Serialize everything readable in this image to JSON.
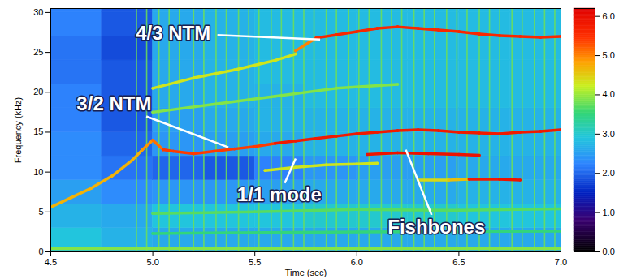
{
  "chart_data": {
    "type": "spectrogram",
    "xlabel": "Time (sec)",
    "ylabel": "Frequency (kHz)",
    "xlim": [
      4.5,
      7.0
    ],
    "xticks": [
      4.5,
      {
        "value": 5,
        "label": "5.0"
      },
      5.5,
      {
        "value": 6,
        "label": "6.0"
      },
      6.5,
      {
        "value": 7,
        "label": "7.0"
      }
    ],
    "ylim": [
      0,
      30.5
    ],
    "yticks": [
      0,
      5,
      10,
      15,
      20,
      25,
      30
    ],
    "heatmap": {
      "x_edges": [
        4.5,
        4.75,
        5.0,
        5.25,
        5.5,
        5.75,
        6.0,
        6.25,
        6.5,
        6.75,
        7.0
      ],
      "y_edges": [
        0,
        3,
        6,
        9,
        12,
        15,
        18,
        21,
        24,
        27,
        30,
        30.5
      ],
      "values": [
        [
          2.9,
          2.7,
          2.6,
          2.6,
          2.6,
          2.6,
          2.6,
          2.6,
          2.6,
          2.6
        ],
        [
          2.7,
          2.6,
          2.9,
          2.9,
          2.9,
          3.0,
          3.0,
          3.0,
          2.9,
          2.9
        ],
        [
          2.5,
          2.3,
          2.4,
          2.4,
          2.5,
          2.6,
          2.6,
          2.6,
          2.7,
          2.7
        ],
        [
          2.3,
          2.1,
          2.0,
          1.9,
          2.2,
          2.4,
          2.5,
          2.5,
          2.6,
          2.6
        ],
        [
          2.3,
          2.0,
          2.4,
          2.5,
          2.6,
          2.7,
          2.7,
          2.7,
          2.7,
          2.7
        ],
        [
          2.2,
          1.9,
          2.5,
          2.6,
          2.7,
          2.7,
          2.7,
          2.7,
          2.7,
          2.7
        ],
        [
          2.2,
          1.9,
          2.6,
          2.7,
          2.7,
          2.8,
          2.8,
          2.8,
          2.8,
          2.8
        ],
        [
          2.1,
          1.9,
          2.6,
          2.7,
          2.8,
          2.8,
          2.8,
          2.8,
          2.8,
          2.8
        ],
        [
          2.1,
          1.8,
          2.6,
          2.7,
          2.8,
          2.8,
          2.8,
          2.8,
          2.8,
          2.8
        ],
        [
          2.2,
          1.9,
          2.6,
          2.7,
          2.8,
          2.8,
          2.8,
          2.8,
          2.8,
          2.8
        ],
        [
          2.2,
          1.9,
          2.6,
          2.7,
          2.8,
          2.8,
          2.8,
          2.8,
          2.8,
          2.8
        ]
      ]
    },
    "spikes": {
      "x": [
        4.92,
        4.97,
        5.03,
        5.08,
        5.13,
        5.2,
        5.25,
        5.31,
        5.36,
        5.42,
        5.47,
        5.52,
        5.58,
        5.63,
        5.69,
        5.74,
        5.79,
        5.85,
        5.9,
        5.96,
        6.01,
        6.06,
        6.12,
        6.17,
        6.22,
        6.28,
        6.33,
        6.38,
        6.44,
        6.49,
        6.54,
        6.6,
        6.65,
        6.7,
        6.76,
        6.81,
        6.87,
        6.92,
        6.97
      ],
      "level": 3.8
    },
    "traces": [
      {
        "x": [
          4.5,
          4.6,
          4.7,
          4.8,
          4.9,
          4.95,
          5.0,
          5.05,
          5.1,
          5.2,
          5.3,
          5.4,
          5.5,
          5.6,
          5.7,
          5.8,
          5.9,
          6.0,
          6.1,
          6.2,
          6.3,
          6.4,
          6.5,
          6.6,
          6.7,
          6.8,
          6.9,
          7.0
        ],
        "values": [
          5.6,
          6.8,
          8.0,
          9.5,
          11.5,
          12.8,
          14.0,
          12.8,
          12.6,
          12.3,
          12.6,
          12.9,
          13.2,
          13.6,
          13.9,
          14.2,
          14.5,
          14.8,
          15.0,
          15.2,
          15.3,
          15.2,
          15.0,
          14.9,
          14.8,
          15.0,
          15.1,
          15.3
        ],
        "levels": [
          4.7,
          4.7,
          4.7,
          4.7,
          4.7,
          4.9,
          5.1,
          5.4,
          5.4,
          5.4,
          5.4,
          5.4,
          5.4,
          5.8,
          5.8,
          5.8,
          5.8,
          5.8,
          5.8,
          5.8,
          5.8,
          5.8,
          5.8,
          5.8,
          5.8,
          5.8,
          5.8,
          5.8
        ]
      },
      {
        "x": [
          5.7,
          5.75,
          5.8,
          5.9,
          6.0,
          6.1,
          6.2,
          6.3,
          6.4,
          6.5,
          6.6,
          6.7,
          6.8,
          6.9,
          7.0
        ],
        "values": [
          25.2,
          26.0,
          26.8,
          27.2,
          27.6,
          28.0,
          28.2,
          28.0,
          27.8,
          27.6,
          27.3,
          27.1,
          27.0,
          26.9,
          27.0
        ],
        "levels": [
          5.0,
          5.0,
          5.6,
          5.6,
          5.6,
          5.6,
          5.6,
          5.6,
          5.6,
          5.6,
          5.6,
          5.6,
          5.6,
          5.6,
          5.6
        ]
      },
      {
        "x": [
          5.0,
          5.2,
          5.4,
          5.6,
          5.7
        ],
        "values": [
          20.5,
          21.8,
          22.8,
          24.0,
          24.8
        ],
        "levels": [
          4.3,
          4.3,
          4.3,
          4.3,
          4.3
        ]
      },
      {
        "x": [
          5.0,
          5.3,
          5.6,
          5.9,
          6.2
        ],
        "values": [
          17.5,
          18.5,
          19.5,
          20.5,
          21.0
        ],
        "levels": [
          3.9,
          3.9,
          3.9,
          3.9,
          3.9
        ]
      },
      {
        "x": [
          5.55,
          5.7,
          5.85,
          6.0,
          6.1
        ],
        "values": [
          10.2,
          10.6,
          10.9,
          11.0,
          11.1
        ],
        "levels": [
          4.3,
          4.3,
          4.3,
          4.3,
          4.3
        ]
      },
      {
        "x": [
          6.05,
          6.2,
          6.35,
          6.5,
          6.6
        ],
        "values": [
          12.2,
          12.4,
          12.3,
          12.2,
          12.1
        ],
        "levels": [
          5.9,
          5.9,
          5.9,
          5.9,
          5.9
        ]
      },
      {
        "x": [
          6.3,
          6.45,
          6.55,
          6.7,
          6.8
        ],
        "values": [
          9.0,
          9.0,
          9.1,
          9.1,
          9.0
        ],
        "levels": [
          4.4,
          4.6,
          5.8,
          5.9,
          5.9
        ]
      },
      {
        "x": [
          5.0,
          5.5,
          6.0,
          6.5,
          7.0
        ],
        "values": [
          4.8,
          5.0,
          5.3,
          5.2,
          5.4
        ],
        "levels": [
          3.7,
          3.7,
          3.7,
          3.7,
          3.7
        ]
      },
      {
        "x": [
          4.5,
          5.0,
          5.5,
          6.0,
          6.5,
          7.0
        ],
        "values": [
          0.4,
          0.4,
          0.4,
          0.4,
          0.4,
          0.4
        ],
        "levels": [
          3.9,
          3.9,
          3.9,
          3.9,
          3.9,
          3.9
        ]
      },
      {
        "x": [
          5.0,
          6.0,
          7.0
        ],
        "values": [
          2.3,
          2.5,
          2.6
        ],
        "levels": [
          3.5,
          3.5,
          3.5
        ]
      }
    ],
    "annotations": [
      {
        "text": "4/3 NTM",
        "x": 5.1,
        "y": 27.4,
        "arrow_to": [
          5.82,
          26.6
        ]
      },
      {
        "text": "3/2 NTM",
        "x": 4.81,
        "y": 18.5,
        "arrow_to": [
          5.37,
          13.1
        ]
      },
      {
        "text": "1/1 mode",
        "x": 5.62,
        "y": 7.1,
        "arrow_to": [
          5.7,
          11.7
        ]
      },
      {
        "text": "Fishbones",
        "x": 6.39,
        "y": 3.1,
        "arrow_to": [
          6.24,
          12.8
        ]
      }
    ],
    "colorbar": {
      "range": [
        0,
        6.2
      ],
      "ticks": [
        {
          "value": 0,
          "label": "0.0"
        },
        {
          "value": 1,
          "label": "1.0"
        },
        {
          "value": 2,
          "label": "2.0"
        },
        {
          "value": 3,
          "label": "3.0"
        },
        {
          "value": 4,
          "label": "4.0"
        },
        {
          "value": 5,
          "label": "5.0"
        },
        {
          "value": 6,
          "label": "6.0"
        }
      ]
    }
  }
}
